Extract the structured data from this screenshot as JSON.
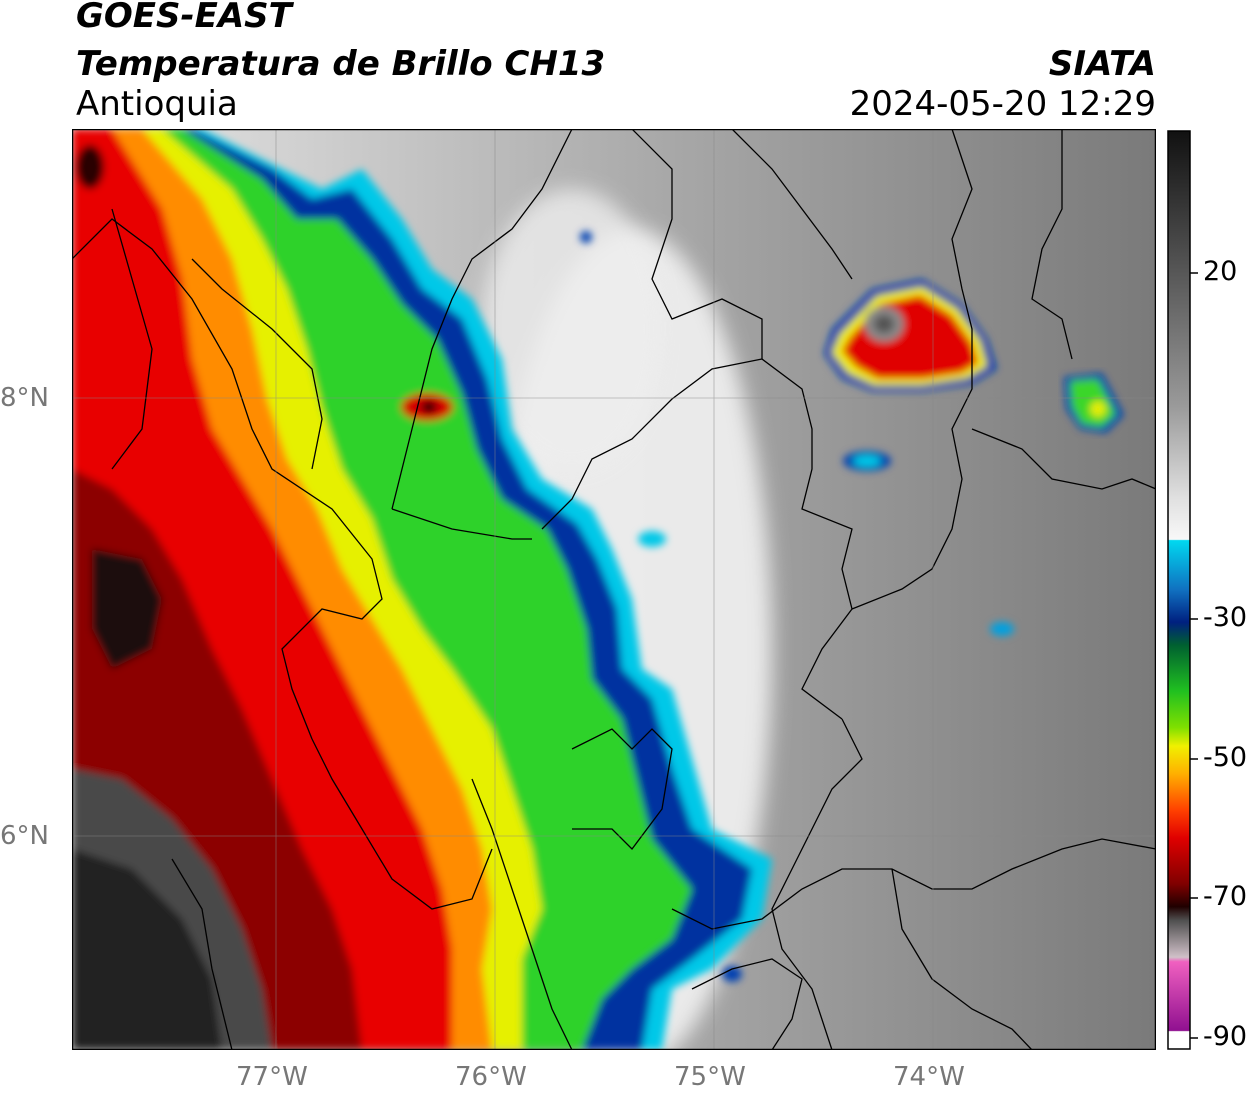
{
  "header": {
    "satellite": "GOES-EAST",
    "product": "Temperatura de Brillo CH13",
    "region": "Antioquia",
    "agency": "SIATA",
    "datetime": "2024-05-20 12:29"
  },
  "axes": {
    "lat_ticks": [
      "8°N",
      "6°N"
    ],
    "lon_ticks": [
      "77°W",
      "76°W",
      "75°W",
      "74°W"
    ],
    "lat_values": [
      8,
      6
    ],
    "lon_values": [
      -77,
      -76,
      -75,
      -74
    ],
    "lon_range": [
      -77.95,
      -73.0
    ],
    "lat_range": [
      4.95,
      9.2
    ],
    "grid": true
  },
  "colorbar": {
    "ticks": [
      "20",
      "-30",
      "-50",
      "-70",
      "-90"
    ],
    "tick_values": [
      20,
      -30,
      -50,
      -70,
      -90
    ],
    "range": [
      -92,
      35
    ],
    "unit": ""
  },
  "colors": {
    "cold_clouds": "#d40000",
    "very_cold": "#2a0a0a",
    "green": "#3ad62a",
    "yellow": "#e6ee00",
    "blue": "#0030a0",
    "cyan": "#00c0e0",
    "warm_surface": "#8c8c8c"
  }
}
